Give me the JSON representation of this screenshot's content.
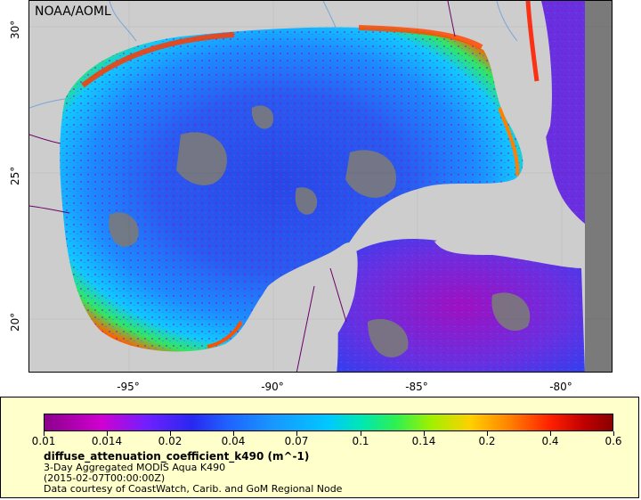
{
  "map": {
    "credit": "NOAA/AOML",
    "lat_labels": [
      "30°",
      "25°",
      "20°"
    ],
    "lon_labels": [
      "-95°",
      "-90°",
      "-85°",
      "-80°"
    ]
  },
  "legend": {
    "colorbar_ticks": [
      "0.01",
      "0.014",
      "0.02",
      "0.04",
      "0.07",
      "0.1",
      "0.14",
      "0.2",
      "0.4",
      "0.6"
    ],
    "variable": "diffuse_attenuation_coefficient_k490 (m^-1)",
    "product": "3-Day Aggregated MODIS Aqua K490",
    "time": "(2015-02-07T00:00:00Z)",
    "courtesy": "Data courtesy of CoastWatch, Carib. and GoM Regional Node"
  },
  "colors": {
    "land": "#cdcdcd",
    "no_data": "#7a7a7a",
    "legend_bg": "#ffffcc",
    "rivers": "#7aa6d6",
    "borders": "#6a006a"
  }
}
